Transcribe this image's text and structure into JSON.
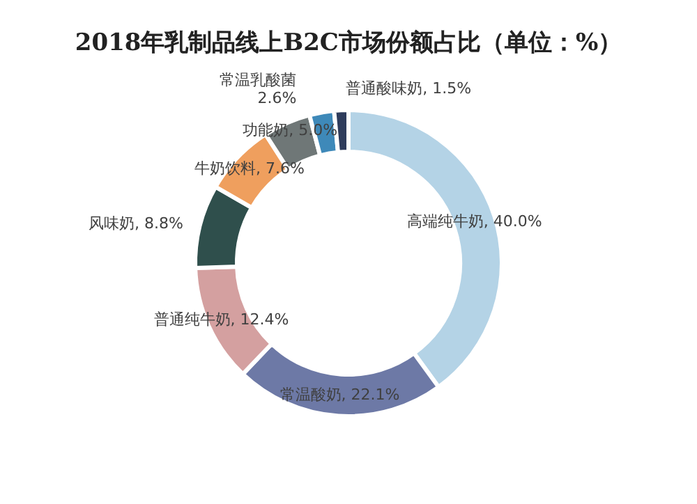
{
  "chart_data": {
    "type": "donut",
    "title": "2018年乳制品线上B2C市场份额占比（单位：%）",
    "categories": [
      "高端纯牛奶",
      "常温酸奶",
      "普通纯牛奶",
      "风味奶",
      "牛奶饮料",
      "功能奶",
      "常温乳酸菌",
      "普通酸味奶"
    ],
    "values": [
      40.0,
      22.1,
      12.4,
      8.8,
      7.6,
      5.0,
      2.6,
      1.5
    ],
    "value_labels": [
      "40.0%",
      "22.1%",
      "12.4%",
      "8.8%",
      "7.6%",
      "5.0%",
      "2.6%",
      "1.5%"
    ],
    "colors": [
      "#b4d3e6",
      "#6d79a6",
      "#d4a0a0",
      "#2f4f4c",
      "#ef9f5e",
      "#6f7777",
      "#3e89b9",
      "#2e3c5c"
    ],
    "legend": false
  }
}
